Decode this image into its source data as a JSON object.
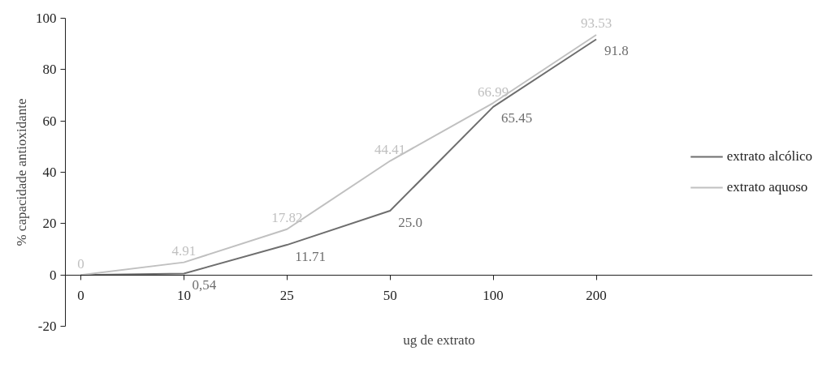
{
  "chart_data": {
    "type": "line",
    "xlabel": "ug de extrato",
    "ylabel": "% capacidade antioxidante",
    "categories": [
      "0",
      "10",
      "25",
      "50",
      "100",
      "200"
    ],
    "series": [
      {
        "name": "extrato alcólico",
        "color": "#6e6e6e",
        "values": [
          0,
          0.54,
          11.71,
          25.0,
          65.45,
          91.8
        ],
        "value_labels": [
          null,
          "0,54",
          "11.71",
          "25.0",
          "65.45",
          "91.8"
        ]
      },
      {
        "name": "extrato aquoso",
        "color": "#c0c0c0",
        "values": [
          0,
          4.91,
          17.82,
          44.41,
          66.99,
          93.53
        ],
        "value_labels": [
          "0",
          "4.91",
          "17.82",
          "44.41",
          "66.99",
          "93.53"
        ]
      }
    ],
    "ylim": [
      -20,
      100
    ],
    "yticks": [
      -20,
      0,
      20,
      40,
      60,
      80,
      100
    ],
    "grid": false,
    "legend": "right",
    "marker": "none",
    "line_style": "solid"
  }
}
